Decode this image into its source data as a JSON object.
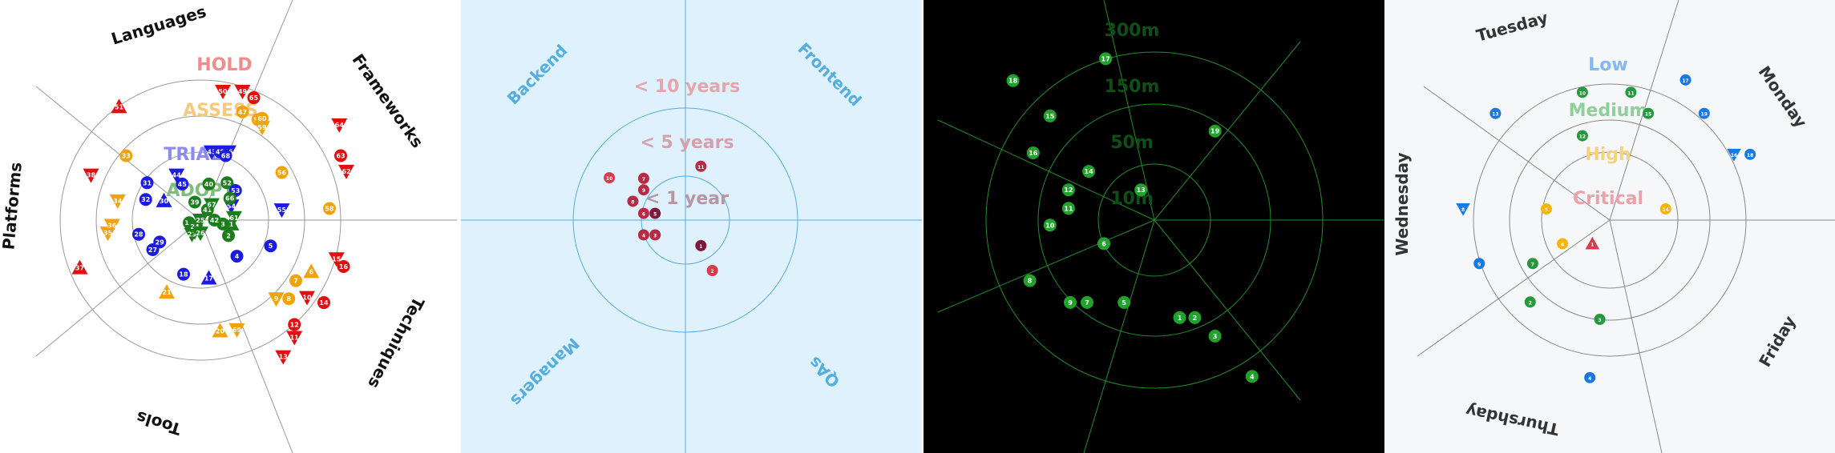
{
  "chart_data": [
    {
      "type": "scatter",
      "title": "",
      "style": {
        "background": "#ffffff",
        "axis": "#999999",
        "ring": "#999999",
        "quadrant_label": "#111111",
        "blip_text": "#ffffff"
      },
      "quadrants": [
        {
          "label": "Languages",
          "angle": -105
        },
        {
          "label": "Frameworks",
          "angle": -30
        },
        {
          "label": "Techniques",
          "angle": 60
        },
        {
          "label": "Tools",
          "angle": 165
        },
        {
          "label": "Platforms",
          "angle": -85
        }
      ],
      "axes_angles": [
        -72,
        0,
        78,
        144,
        216
      ],
      "rings": [
        {
          "label": "HOLD",
          "color": "#f28b8b"
        },
        {
          "label": "ASSESS",
          "color": "#f7c97a"
        },
        {
          "label": "TRIAL",
          "color": "#8a8af0"
        },
        {
          "label": "ADOPT",
          "color": "#7ebe7e"
        }
      ],
      "ring_colors": {
        "adopt": "#1a7f1a",
        "trial": "#1c1ce0",
        "assess": "#f2a20c",
        "hold": "#e01010"
      },
      "blips": [
        {
          "id": "1",
          "ring": "adopt",
          "shape": "triangle-up",
          "x": 0.22,
          "y": 0.03
        },
        {
          "id": "2",
          "ring": "adopt",
          "shape": "circle",
          "x": 0.2,
          "y": 0.12
        },
        {
          "id": "3",
          "ring": "adopt",
          "shape": "circle",
          "x": 0.16,
          "y": 0.03
        },
        {
          "id": "4",
          "ring": "trial",
          "shape": "circle",
          "x": 0.26,
          "y": 0.28
        },
        {
          "id": "5",
          "ring": "trial",
          "shape": "circle",
          "x": 0.5,
          "y": 0.2
        },
        {
          "id": "6",
          "ring": "assess",
          "shape": "triangle-up",
          "x": 0.79,
          "y": 0.4
        },
        {
          "id": "7",
          "ring": "assess",
          "shape": "circle",
          "x": 0.68,
          "y": 0.47
        },
        {
          "id": "8",
          "ring": "assess",
          "shape": "circle",
          "x": 0.63,
          "y": 0.61
        },
        {
          "id": "9",
          "ring": "assess",
          "shape": "triangle-down",
          "x": 0.54,
          "y": 0.61
        },
        {
          "id": "10",
          "ring": "hold",
          "shape": "triangle-down",
          "x": 0.76,
          "y": 0.6
        },
        {
          "id": "11",
          "ring": "hold",
          "shape": "triangle-down",
          "x": 0.67,
          "y": 0.91
        },
        {
          "id": "12",
          "ring": "hold",
          "shape": "circle",
          "x": 0.67,
          "y": 0.81
        },
        {
          "id": "13",
          "ring": "hold",
          "shape": "triangle-down",
          "x": 0.59,
          "y": 1.06
        },
        {
          "id": "14",
          "ring": "hold",
          "shape": "circle",
          "x": 0.88,
          "y": 0.64
        },
        {
          "id": "15",
          "ring": "hold",
          "shape": "triangle-down",
          "x": 0.97,
          "y": 0.3
        },
        {
          "id": "16",
          "ring": "hold",
          "shape": "circle",
          "x": 1.02,
          "y": 0.36
        },
        {
          "id": "17",
          "ring": "trial",
          "shape": "triangle-up",
          "x": 0.06,
          "y": 0.45
        },
        {
          "id": "18",
          "ring": "trial",
          "shape": "circle",
          "x": -0.12,
          "y": 0.42
        },
        {
          "id": "19",
          "ring": "adopt",
          "shape": "circle",
          "x": -0.08,
          "y": 0.02
        },
        {
          "id": "20",
          "ring": "assess",
          "shape": "triangle-up",
          "x": 0.14,
          "y": 0.86
        },
        {
          "id": "21",
          "ring": "assess",
          "shape": "triangle-up",
          "x": -0.24,
          "y": 0.56
        },
        {
          "id": "22",
          "ring": "adopt",
          "shape": "triangle-down",
          "x": -0.04,
          "y": 0.09
        },
        {
          "id": "23",
          "ring": "adopt",
          "shape": "triangle-down",
          "x": -0.06,
          "y": 0.11
        },
        {
          "id": "24",
          "ring": "adopt",
          "shape": "triangle-down",
          "x": -0.04,
          "y": 0.05
        },
        {
          "id": "25",
          "ring": "adopt",
          "shape": "triangle-down",
          "x": 0.0,
          "y": 0.0
        },
        {
          "id": "26",
          "ring": "adopt",
          "shape": "triangle-down",
          "x": 0.0,
          "y": 0.1
        },
        {
          "id": "27",
          "ring": "trial",
          "shape": "circle",
          "x": -0.34,
          "y": 0.23
        },
        {
          "id": "28",
          "ring": "trial",
          "shape": "circle",
          "x": -0.44,
          "y": 0.11
        },
        {
          "id": "29",
          "ring": "trial",
          "shape": "circle",
          "x": -0.29,
          "y": 0.17
        },
        {
          "id": "30",
          "ring": "trial",
          "shape": "triangle-up",
          "x": -0.26,
          "y": -0.15
        },
        {
          "id": "31",
          "ring": "trial",
          "shape": "circle",
          "x": -0.38,
          "y": -0.29
        },
        {
          "id": "32",
          "ring": "trial",
          "shape": "circle",
          "x": -0.39,
          "y": -0.16
        },
        {
          "id": "33",
          "ring": "assess",
          "shape": "circle",
          "x": -0.53,
          "y": -0.5
        },
        {
          "id": "34",
          "ring": "assess",
          "shape": "triangle-down",
          "x": -0.59,
          "y": -0.15
        },
        {
          "id": "35",
          "ring": "assess",
          "shape": "triangle-down",
          "x": -0.66,
          "y": 0.1
        },
        {
          "id": "36",
          "ring": "assess",
          "shape": "triangle-down",
          "x": -0.63,
          "y": 0.04
        },
        {
          "id": "37",
          "ring": "hold",
          "shape": "triangle-up",
          "x": -0.86,
          "y": 0.37
        },
        {
          "id": "38",
          "ring": "hold",
          "shape": "triangle-down",
          "x": -0.78,
          "y": -0.35
        },
        {
          "id": "39",
          "ring": "adopt",
          "shape": "circle",
          "x": -0.04,
          "y": -0.14
        },
        {
          "id": "40",
          "ring": "adopt",
          "shape": "circle",
          "x": 0.06,
          "y": -0.28
        },
        {
          "id": "41",
          "ring": "adopt",
          "shape": "circle",
          "x": 0.05,
          "y": -0.08
        },
        {
          "id": "42",
          "ring": "adopt",
          "shape": "circle",
          "x": 0.1,
          "y": 0.0
        },
        {
          "id": "43",
          "ring": "trial",
          "shape": "triangle-down",
          "x": 0.08,
          "y": -0.53
        },
        {
          "id": "44",
          "ring": "trial",
          "shape": "triangle-down",
          "x": -0.17,
          "y": -0.35
        },
        {
          "id": "45",
          "ring": "trial",
          "shape": "circle",
          "x": -0.13,
          "y": -0.28
        },
        {
          "id": "46",
          "ring": "trial",
          "shape": "triangle-down",
          "x": 0.2,
          "y": -0.53
        },
        {
          "id": "47",
          "ring": "assess",
          "shape": "circle",
          "x": 0.3,
          "y": -0.84
        },
        {
          "id": "48",
          "ring": "trial",
          "shape": "circle",
          "x": 0.14,
          "y": -0.53
        },
        {
          "id": "49",
          "ring": "hold",
          "shape": "triangle-down",
          "x": 0.3,
          "y": -1.0
        },
        {
          "id": "50",
          "ring": "hold",
          "shape": "triangle-down",
          "x": 0.16,
          "y": -1.0
        },
        {
          "id": "51",
          "ring": "hold",
          "shape": "triangle-up",
          "x": -0.58,
          "y": -0.88
        },
        {
          "id": "52",
          "ring": "adopt",
          "shape": "circle",
          "x": 0.19,
          "y": -0.29
        },
        {
          "id": "53",
          "ring": "trial",
          "shape": "circle",
          "x": 0.25,
          "y": -0.23
        },
        {
          "id": "54",
          "ring": "trial",
          "shape": "triangle-down",
          "x": 0.22,
          "y": -0.11
        },
        {
          "id": "55",
          "ring": "trial",
          "shape": "triangle-down",
          "x": 0.58,
          "y": -0.08
        },
        {
          "id": "56",
          "ring": "assess",
          "shape": "circle",
          "x": 0.58,
          "y": -0.37
        },
        {
          "id": "57",
          "ring": "assess",
          "shape": "circle",
          "x": 0.41,
          "y": -0.78
        },
        {
          "id": "58",
          "ring": "assess",
          "shape": "circle",
          "x": 0.92,
          "y": -0.09
        },
        {
          "id": "59",
          "ring": "assess",
          "shape": "triangle-down",
          "x": 0.44,
          "y": -0.72
        },
        {
          "id": "60",
          "ring": "assess",
          "shape": "circle",
          "x": 0.44,
          "y": -0.79
        },
        {
          "id": "61",
          "ring": "adopt",
          "shape": "triangle-down",
          "x": 0.24,
          "y": -0.02
        },
        {
          "id": "62",
          "ring": "hold",
          "shape": "triangle-down",
          "x": 1.04,
          "y": -0.38
        },
        {
          "id": "63",
          "ring": "hold",
          "shape": "circle",
          "x": 1.0,
          "y": -0.5
        },
        {
          "id": "64",
          "ring": "hold",
          "shape": "triangle-down",
          "x": 0.99,
          "y": -0.74
        },
        {
          "id": "65",
          "ring": "hold",
          "shape": "circle",
          "x": 0.38,
          "y": -0.95
        },
        {
          "id": "66",
          "ring": "adopt",
          "shape": "circle",
          "x": 0.21,
          "y": -0.17
        },
        {
          "id": "67",
          "ring": "adopt",
          "shape": "triangle-down",
          "x": 0.08,
          "y": -0.12
        },
        {
          "id": "68",
          "ring": "trial",
          "shape": "circle",
          "x": 0.18,
          "y": -0.5
        },
        {
          "id": "69",
          "ring": "assess",
          "shape": "triangle-down",
          "x": 0.26,
          "y": 0.85
        }
      ]
    },
    {
      "type": "scatter",
      "title": "",
      "style": {
        "background": "#dff1fc",
        "axis": "#55aee0",
        "ring": "#55aee0",
        "quadrant_label": "#55aee0",
        "blip_text": "#ffffff"
      },
      "quadrants": [
        {
          "label": "Backend",
          "angle": -40
        },
        {
          "label": "Frontend",
          "angle": 40
        },
        {
          "label": "QAs",
          "angle": -60
        },
        {
          "label": "Managers",
          "angle": 45
        }
      ],
      "rings": [
        {
          "label": "< 10 years",
          "color": "#e3a6ad"
        },
        {
          "label": "< 5 years",
          "color": "#d4a2ad"
        },
        {
          "label": "< 1 year",
          "color": "#b596a4"
        }
      ],
      "ring_colors": {
        "r1": "#7b1a3a",
        "r2": "#b72b44",
        "r3": "#d83c4a"
      },
      "blips": [
        {
          "id": "1",
          "ring": "r1",
          "x": 0.23,
          "y": 0.38
        },
        {
          "id": "2",
          "ring": "r3",
          "x": 0.4,
          "y": 0.75
        },
        {
          "id": "3",
          "ring": "r2",
          "x": -0.45,
          "y": 0.22
        },
        {
          "id": "4",
          "ring": "r2",
          "x": -0.62,
          "y": 0.22
        },
        {
          "id": "5",
          "ring": "r1",
          "x": -0.45,
          "y": -0.1
        },
        {
          "id": "6",
          "ring": "r2",
          "x": -0.62,
          "y": -0.1
        },
        {
          "id": "7",
          "ring": "r2",
          "x": -0.62,
          "y": -0.62
        },
        {
          "id": "8",
          "ring": "r2",
          "x": -0.78,
          "y": -0.28
        },
        {
          "id": "9",
          "ring": "r2",
          "x": -0.62,
          "y": -0.45
        },
        {
          "id": "10",
          "ring": "r3",
          "x": -1.13,
          "y": -0.63
        },
        {
          "id": "11",
          "ring": "r2",
          "x": 0.23,
          "y": -0.8
        }
      ]
    },
    {
      "type": "scatter",
      "title": "",
      "style": {
        "background": "#000000",
        "axis": "#1f8f2a",
        "ring": "#1f8f2a",
        "blip": "#21a32b",
        "blip_text": "#ffffff",
        "ring_label": "#0f4f17"
      },
      "axes_angles": [
        -100,
        -43,
        53,
        98,
        155,
        195
      ],
      "rings": [
        {
          "label": "300m"
        },
        {
          "label": "150m"
        },
        {
          "label": "50m"
        },
        {
          "label": "10m"
        }
      ],
      "blips": [
        {
          "id": "1",
          "x": 0.15,
          "y": 0.58
        },
        {
          "id": "2",
          "x": 0.24,
          "y": 0.58
        },
        {
          "id": "3",
          "x": 0.36,
          "y": 0.69
        },
        {
          "id": "4",
          "x": 0.58,
          "y": 0.93
        },
        {
          "id": "5",
          "x": -0.18,
          "y": 0.49
        },
        {
          "id": "6",
          "x": -0.3,
          "y": 0.14
        },
        {
          "id": "7",
          "x": -0.4,
          "y": 0.49
        },
        {
          "id": "8",
          "x": -0.74,
          "y": 0.36
        },
        {
          "id": "9",
          "x": -0.5,
          "y": 0.49
        },
        {
          "id": "10",
          "x": -0.62,
          "y": 0.03
        },
        {
          "id": "11",
          "x": -0.51,
          "y": -0.07
        },
        {
          "id": "12",
          "x": -0.51,
          "y": -0.18
        },
        {
          "id": "13",
          "x": -0.08,
          "y": -0.18
        },
        {
          "id": "14",
          "x": -0.39,
          "y": -0.29
        },
        {
          "id": "15",
          "x": -0.62,
          "y": -0.62
        },
        {
          "id": "16",
          "x": -0.72,
          "y": -0.4
        },
        {
          "id": "17",
          "x": -0.29,
          "y": -0.96
        },
        {
          "id": "18",
          "x": -0.84,
          "y": -0.83
        },
        {
          "id": "19",
          "x": 0.36,
          "y": -0.53
        }
      ]
    },
    {
      "type": "scatter",
      "title": "",
      "style": {
        "background": "#f6f7f9",
        "axis": "#888888",
        "ring": "#888888",
        "quadrant_label": "#333333",
        "blip_text": "#ffffff"
      },
      "axes_angles": [
        -80,
        -38,
        90,
        145,
        212
      ],
      "quadrants": [
        {
          "label": "Tuesday",
          "angle": -15
        },
        {
          "label": "Monday",
          "angle": 55
        },
        {
          "label": "Friday",
          "angle": -60
        },
        {
          "label": "Thurshday",
          "angle": 10
        },
        {
          "label": "Wednesday",
          "angle": -90
        }
      ],
      "rings": [
        {
          "label": "Low",
          "color": "#82b9f0"
        },
        {
          "label": "Medium",
          "color": "#8fcf9b"
        },
        {
          "label": "High",
          "color": "#f7d27e"
        },
        {
          "label": "Critical",
          "color": "#eca0a7"
        }
      ],
      "ring_colors": {
        "low": "#1778e8",
        "medium": "#249a3c",
        "high": "#f5b50e",
        "critical": "#d83a4a"
      },
      "blips": [
        {
          "id": "1",
          "ring": "critical",
          "shape": "triangle-up",
          "x": -0.14,
          "y": 0.19
        },
        {
          "id": "2",
          "ring": "medium",
          "shape": "circle",
          "x": -0.64,
          "y": 0.66
        },
        {
          "id": "3",
          "ring": "medium",
          "shape": "circle",
          "x": -0.08,
          "y": 0.8
        },
        {
          "id": "4",
          "ring": "low",
          "shape": "circle",
          "x": -0.16,
          "y": 1.27
        },
        {
          "id": "5",
          "ring": "high",
          "shape": "circle",
          "x": -0.51,
          "y": -0.09
        },
        {
          "id": "6",
          "ring": "high",
          "shape": "circle",
          "x": -0.38,
          "y": 0.19
        },
        {
          "id": "7",
          "ring": "medium",
          "shape": "circle",
          "x": -0.62,
          "y": 0.35
        },
        {
          "id": "8",
          "ring": "low",
          "shape": "triangle-down",
          "x": -1.18,
          "y": -0.09
        },
        {
          "id": "9",
          "ring": "low",
          "shape": "circle",
          "x": -1.05,
          "y": 0.35
        },
        {
          "id": "10",
          "ring": "medium",
          "shape": "circle",
          "x": -0.22,
          "y": -1.03
        },
        {
          "id": "11",
          "ring": "medium",
          "shape": "circle",
          "x": 0.17,
          "y": -1.03
        },
        {
          "id": "12",
          "ring": "medium",
          "shape": "circle",
          "x": -0.22,
          "y": -0.68
        },
        {
          "id": "13",
          "ring": "low",
          "shape": "circle",
          "x": -0.92,
          "y": -0.86
        },
        {
          "id": "14",
          "ring": "high",
          "shape": "circle",
          "x": 0.45,
          "y": -0.09
        },
        {
          "id": "15",
          "ring": "medium",
          "shape": "circle",
          "x": 0.31,
          "y": -0.86
        },
        {
          "id": "16",
          "ring": "low",
          "shape": "triangle-down",
          "x": 1.0,
          "y": -0.53
        },
        {
          "id": "17",
          "ring": "low",
          "shape": "circle",
          "x": 0.61,
          "y": -1.13
        },
        {
          "id": "18",
          "ring": "low",
          "shape": "circle",
          "x": 1.13,
          "y": -0.53
        },
        {
          "id": "19",
          "ring": "low",
          "shape": "circle",
          "x": 0.76,
          "y": -0.86
        }
      ]
    }
  ]
}
